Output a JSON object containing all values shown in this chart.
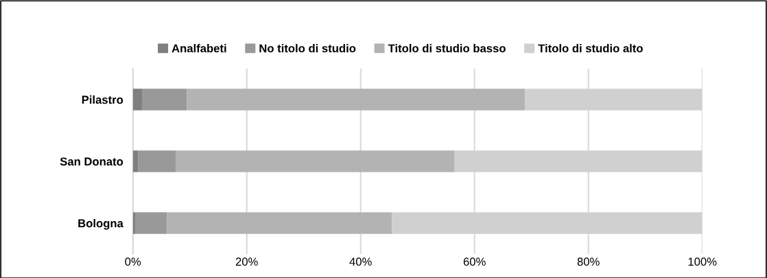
{
  "chart_data": {
    "type": "bar",
    "orientation": "horizontal",
    "stacked": true,
    "categories": [
      "Pilastro",
      "San Donato",
      "Bologna"
    ],
    "series": [
      {
        "name": "Analfabeti",
        "color": "#7f7f7f",
        "values": [
          1.6,
          0.9,
          0.4
        ]
      },
      {
        "name": "No titolo di studio",
        "color": "#999999",
        "values": [
          7.9,
          6.6,
          5.6
        ]
      },
      {
        "name": "Titolo di studio basso",
        "color": "#b3b3b3",
        "values": [
          59.4,
          49.0,
          39.5
        ]
      },
      {
        "name": "Titolo di studio alto",
        "color": "#d0d0d0",
        "values": [
          31.1,
          43.5,
          54.5
        ]
      }
    ],
    "xlim": [
      0,
      100
    ],
    "xticks": [
      {
        "value": 0,
        "label": "0%"
      },
      {
        "value": 20,
        "label": "20%"
      },
      {
        "value": 40,
        "label": "40%"
      },
      {
        "value": 60,
        "label": "60%"
      },
      {
        "value": 80,
        "label": "80%"
      },
      {
        "value": 100,
        "label": "100%"
      }
    ],
    "grid": "x",
    "legend": "top"
  }
}
